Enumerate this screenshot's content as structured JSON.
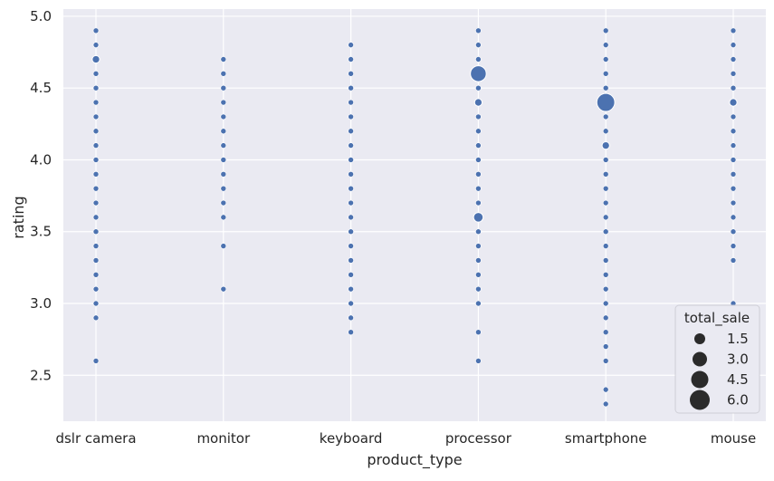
{
  "chart_data": {
    "type": "scatter",
    "title": "",
    "xlabel": "product_type",
    "ylabel": "rating",
    "categories": [
      "dslr camera",
      "monitor",
      "keyboard",
      "processor",
      "smartphone",
      "mouse"
    ],
    "ylim": [
      2.18,
      5.05
    ],
    "yticks": [
      "2.5",
      "3.0",
      "3.5",
      "4.0",
      "4.5",
      "5.0"
    ],
    "grid": true,
    "colors": {
      "background": "#eaeaf2",
      "grid": "#ffffff",
      "marker": "#4c72b0",
      "legend_marker": "#2b2b2b"
    },
    "legend": {
      "title": "total_sale",
      "position": "bottom-right",
      "entries": [
        {
          "label": "1.5",
          "value": 1.5
        },
        {
          "label": "3.0",
          "value": 3.0
        },
        {
          "label": "4.5",
          "value": 4.5
        },
        {
          "label": "6.0",
          "value": 6.0
        }
      ]
    },
    "points": [
      {
        "x": "dslr camera",
        "y": 4.9,
        "s": 1
      },
      {
        "x": "dslr camera",
        "y": 4.8,
        "s": 1
      },
      {
        "x": "dslr camera",
        "y": 4.7,
        "s": 2
      },
      {
        "x": "dslr camera",
        "y": 4.6,
        "s": 1
      },
      {
        "x": "dslr camera",
        "y": 4.5,
        "s": 1
      },
      {
        "x": "dslr camera",
        "y": 4.4,
        "s": 1
      },
      {
        "x": "dslr camera",
        "y": 4.3,
        "s": 1
      },
      {
        "x": "dslr camera",
        "y": 4.2,
        "s": 1
      },
      {
        "x": "dslr camera",
        "y": 4.1,
        "s": 1
      },
      {
        "x": "dslr camera",
        "y": 4.0,
        "s": 1
      },
      {
        "x": "dslr camera",
        "y": 3.9,
        "s": 1
      },
      {
        "x": "dslr camera",
        "y": 3.8,
        "s": 1
      },
      {
        "x": "dslr camera",
        "y": 3.7,
        "s": 1
      },
      {
        "x": "dslr camera",
        "y": 3.6,
        "s": 1
      },
      {
        "x": "dslr camera",
        "y": 3.5,
        "s": 1
      },
      {
        "x": "dslr camera",
        "y": 3.4,
        "s": 1
      },
      {
        "x": "dslr camera",
        "y": 3.3,
        "s": 1
      },
      {
        "x": "dslr camera",
        "y": 3.2,
        "s": 1
      },
      {
        "x": "dslr camera",
        "y": 3.1,
        "s": 1
      },
      {
        "x": "dslr camera",
        "y": 3.0,
        "s": 1
      },
      {
        "x": "dslr camera",
        "y": 2.9,
        "s": 1
      },
      {
        "x": "dslr camera",
        "y": 2.6,
        "s": 1
      },
      {
        "x": "monitor",
        "y": 4.7,
        "s": 1
      },
      {
        "x": "monitor",
        "y": 4.6,
        "s": 1
      },
      {
        "x": "monitor",
        "y": 4.5,
        "s": 1
      },
      {
        "x": "monitor",
        "y": 4.4,
        "s": 1
      },
      {
        "x": "monitor",
        "y": 4.3,
        "s": 1
      },
      {
        "x": "monitor",
        "y": 4.2,
        "s": 1
      },
      {
        "x": "monitor",
        "y": 4.1,
        "s": 1
      },
      {
        "x": "monitor",
        "y": 4.0,
        "s": 1
      },
      {
        "x": "monitor",
        "y": 3.9,
        "s": 1
      },
      {
        "x": "monitor",
        "y": 3.8,
        "s": 1
      },
      {
        "x": "monitor",
        "y": 3.7,
        "s": 1
      },
      {
        "x": "monitor",
        "y": 3.6,
        "s": 1
      },
      {
        "x": "monitor",
        "y": 3.4,
        "s": 1
      },
      {
        "x": "monitor",
        "y": 3.1,
        "s": 1
      },
      {
        "x": "keyboard",
        "y": 4.8,
        "s": 1
      },
      {
        "x": "keyboard",
        "y": 4.7,
        "s": 1
      },
      {
        "x": "keyboard",
        "y": 4.6,
        "s": 1
      },
      {
        "x": "keyboard",
        "y": 4.5,
        "s": 1
      },
      {
        "x": "keyboard",
        "y": 4.4,
        "s": 1
      },
      {
        "x": "keyboard",
        "y": 4.3,
        "s": 1
      },
      {
        "x": "keyboard",
        "y": 4.2,
        "s": 1
      },
      {
        "x": "keyboard",
        "y": 4.1,
        "s": 1
      },
      {
        "x": "keyboard",
        "y": 4.0,
        "s": 1
      },
      {
        "x": "keyboard",
        "y": 3.9,
        "s": 1
      },
      {
        "x": "keyboard",
        "y": 3.8,
        "s": 1
      },
      {
        "x": "keyboard",
        "y": 3.7,
        "s": 1
      },
      {
        "x": "keyboard",
        "y": 3.6,
        "s": 1
      },
      {
        "x": "keyboard",
        "y": 3.5,
        "s": 1
      },
      {
        "x": "keyboard",
        "y": 3.4,
        "s": 1
      },
      {
        "x": "keyboard",
        "y": 3.3,
        "s": 1
      },
      {
        "x": "keyboard",
        "y": 3.2,
        "s": 1
      },
      {
        "x": "keyboard",
        "y": 3.1,
        "s": 1
      },
      {
        "x": "keyboard",
        "y": 3.0,
        "s": 1
      },
      {
        "x": "keyboard",
        "y": 2.9,
        "s": 1
      },
      {
        "x": "keyboard",
        "y": 2.8,
        "s": 1
      },
      {
        "x": "processor",
        "y": 4.9,
        "s": 1
      },
      {
        "x": "processor",
        "y": 4.8,
        "s": 1
      },
      {
        "x": "processor",
        "y": 4.7,
        "s": 1
      },
      {
        "x": "processor",
        "y": 4.6,
        "s": 6
      },
      {
        "x": "processor",
        "y": 4.5,
        "s": 1
      },
      {
        "x": "processor",
        "y": 4.4,
        "s": 2
      },
      {
        "x": "processor",
        "y": 4.3,
        "s": 1
      },
      {
        "x": "processor",
        "y": 4.2,
        "s": 1
      },
      {
        "x": "processor",
        "y": 4.1,
        "s": 1
      },
      {
        "x": "processor",
        "y": 4.0,
        "s": 1
      },
      {
        "x": "processor",
        "y": 3.9,
        "s": 1
      },
      {
        "x": "processor",
        "y": 3.8,
        "s": 1
      },
      {
        "x": "processor",
        "y": 3.7,
        "s": 1
      },
      {
        "x": "processor",
        "y": 3.6,
        "s": 3
      },
      {
        "x": "processor",
        "y": 3.5,
        "s": 1
      },
      {
        "x": "processor",
        "y": 3.4,
        "s": 1
      },
      {
        "x": "processor",
        "y": 3.3,
        "s": 1
      },
      {
        "x": "processor",
        "y": 3.2,
        "s": 1
      },
      {
        "x": "processor",
        "y": 3.1,
        "s": 1
      },
      {
        "x": "processor",
        "y": 3.0,
        "s": 1
      },
      {
        "x": "processor",
        "y": 2.8,
        "s": 1
      },
      {
        "x": "processor",
        "y": 2.6,
        "s": 1
      },
      {
        "x": "smartphone",
        "y": 4.9,
        "s": 1
      },
      {
        "x": "smartphone",
        "y": 4.8,
        "s": 1
      },
      {
        "x": "smartphone",
        "y": 4.7,
        "s": 1
      },
      {
        "x": "smartphone",
        "y": 4.6,
        "s": 1
      },
      {
        "x": "smartphone",
        "y": 4.5,
        "s": 1
      },
      {
        "x": "smartphone",
        "y": 4.4,
        "s": 7
      },
      {
        "x": "smartphone",
        "y": 4.3,
        "s": 1
      },
      {
        "x": "smartphone",
        "y": 4.2,
        "s": 1
      },
      {
        "x": "smartphone",
        "y": 4.1,
        "s": 2
      },
      {
        "x": "smartphone",
        "y": 4.0,
        "s": 1
      },
      {
        "x": "smartphone",
        "y": 3.9,
        "s": 1
      },
      {
        "x": "smartphone",
        "y": 3.8,
        "s": 1
      },
      {
        "x": "smartphone",
        "y": 3.7,
        "s": 1
      },
      {
        "x": "smartphone",
        "y": 3.6,
        "s": 1
      },
      {
        "x": "smartphone",
        "y": 3.5,
        "s": 1
      },
      {
        "x": "smartphone",
        "y": 3.4,
        "s": 1
      },
      {
        "x": "smartphone",
        "y": 3.3,
        "s": 1
      },
      {
        "x": "smartphone",
        "y": 3.2,
        "s": 1
      },
      {
        "x": "smartphone",
        "y": 3.1,
        "s": 1
      },
      {
        "x": "smartphone",
        "y": 3.0,
        "s": 1
      },
      {
        "x": "smartphone",
        "y": 2.9,
        "s": 1
      },
      {
        "x": "smartphone",
        "y": 2.8,
        "s": 1
      },
      {
        "x": "smartphone",
        "y": 2.7,
        "s": 1
      },
      {
        "x": "smartphone",
        "y": 2.6,
        "s": 1
      },
      {
        "x": "smartphone",
        "y": 2.4,
        "s": 1
      },
      {
        "x": "smartphone",
        "y": 2.3,
        "s": 1
      },
      {
        "x": "mouse",
        "y": 4.9,
        "s": 1
      },
      {
        "x": "mouse",
        "y": 4.8,
        "s": 1
      },
      {
        "x": "mouse",
        "y": 4.7,
        "s": 1
      },
      {
        "x": "mouse",
        "y": 4.6,
        "s": 1
      },
      {
        "x": "mouse",
        "y": 4.5,
        "s": 1
      },
      {
        "x": "mouse",
        "y": 4.4,
        "s": 2
      },
      {
        "x": "mouse",
        "y": 4.3,
        "s": 1
      },
      {
        "x": "mouse",
        "y": 4.2,
        "s": 1
      },
      {
        "x": "mouse",
        "y": 4.1,
        "s": 1
      },
      {
        "x": "mouse",
        "y": 4.0,
        "s": 1
      },
      {
        "x": "mouse",
        "y": 3.9,
        "s": 1
      },
      {
        "x": "mouse",
        "y": 3.8,
        "s": 1
      },
      {
        "x": "mouse",
        "y": 3.7,
        "s": 1
      },
      {
        "x": "mouse",
        "y": 3.6,
        "s": 1
      },
      {
        "x": "mouse",
        "y": 3.5,
        "s": 1
      },
      {
        "x": "mouse",
        "y": 3.4,
        "s": 1
      },
      {
        "x": "mouse",
        "y": 3.3,
        "s": 1
      },
      {
        "x": "mouse",
        "y": 3.0,
        "s": 1
      }
    ]
  }
}
